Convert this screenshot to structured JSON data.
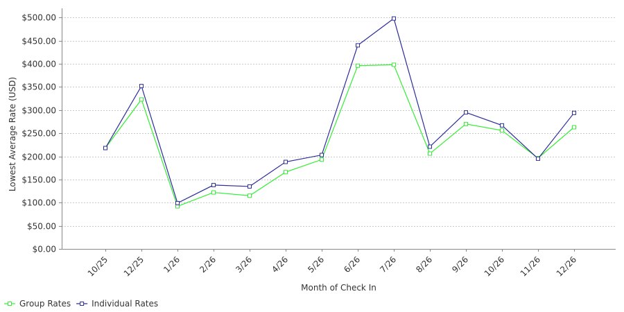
{
  "chart_data": {
    "type": "line",
    "title": "",
    "xlabel": "Month of Check In",
    "ylabel": "Lowest Average Rate (USD)",
    "ylim": [
      0,
      520
    ],
    "yticks": [
      {
        "value": 0,
        "label": "$0.00"
      },
      {
        "value": 50,
        "label": "$50.00"
      },
      {
        "value": 100,
        "label": "$100.00"
      },
      {
        "value": 150,
        "label": "$150.00"
      },
      {
        "value": 200,
        "label": "$200.00"
      },
      {
        "value": 250,
        "label": "$250.00"
      },
      {
        "value": 300,
        "label": "$300.00"
      },
      {
        "value": 350,
        "label": "$350.00"
      },
      {
        "value": 400,
        "label": "$400.00"
      },
      {
        "value": 450,
        "label": "$450.00"
      },
      {
        "value": 500,
        "label": "$500.00"
      }
    ],
    "grid": true,
    "legend": "bottom-left",
    "categories": [
      "10/25",
      "12/25",
      "1/26",
      "2/26",
      "3/26",
      "4/26",
      "5/26",
      "6/26",
      "7/26",
      "8/26",
      "9/26",
      "10/26",
      "11/26",
      "12/26"
    ],
    "series": [
      {
        "name": "Group Rates",
        "color": "#33ee33",
        "values": [
          218,
          323,
          92,
          122,
          115,
          166,
          193,
          396,
          398,
          206,
          270,
          256,
          196,
          263
        ]
      },
      {
        "name": "Individual Rates",
        "color": "#2b2b9c",
        "values": [
          218,
          352,
          99,
          138,
          135,
          188,
          203,
          440,
          498,
          221,
          295,
          267,
          195,
          294
        ]
      }
    ]
  }
}
